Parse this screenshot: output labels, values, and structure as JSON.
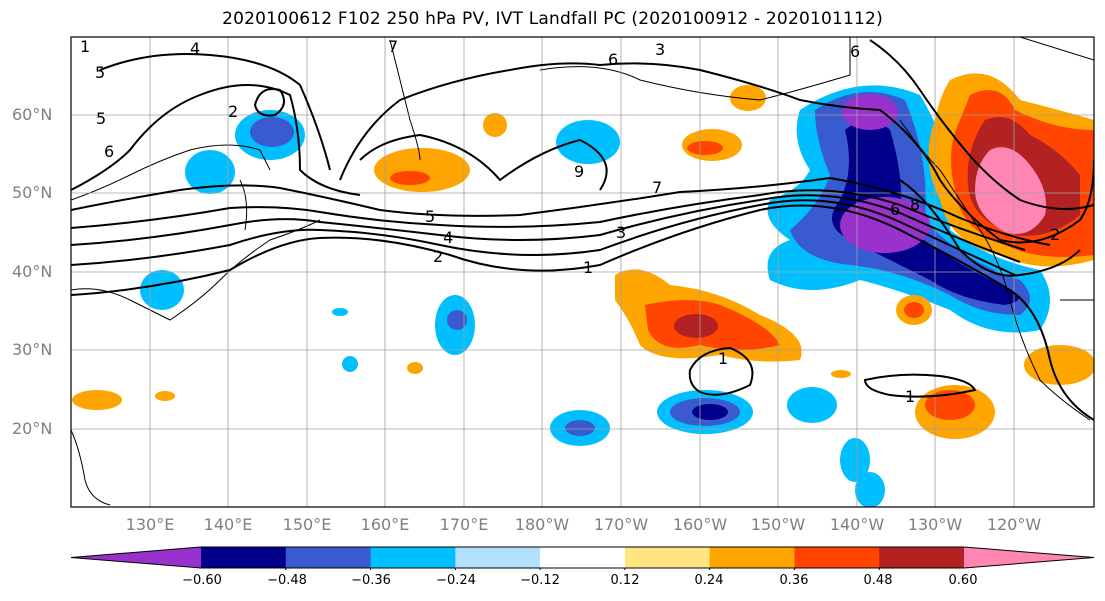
{
  "title": "2020100612 F102 250 hPa PV, IVT Landfall PC (2020100912 - 2020101112)",
  "latitude_labels": [
    "60°N",
    "50°N",
    "40°N",
    "30°N",
    "20°N"
  ],
  "longitude_labels": [
    "130°E",
    "140°E",
    "150°E",
    "160°E",
    "170°E",
    "180°W",
    "170°W",
    "160°W",
    "150°W",
    "140°W",
    "130°W",
    "120°W"
  ],
  "colorbar": {
    "ticks": [
      "−0.60",
      "−0.48",
      "−0.36",
      "−0.24",
      "−0.12",
      "0.12",
      "0.24",
      "0.36",
      "0.48",
      "0.60"
    ],
    "colors": [
      "#9932cc",
      "#00008b",
      "#3a5bd0",
      "#00bfff",
      "#b3e0ff",
      "#ffffff",
      "#ffe680",
      "#ffa500",
      "#ff4500",
      "#b22222",
      "#ff85b3"
    ]
  },
  "contour_labels": [
    "1",
    "2",
    "3",
    "4",
    "5",
    "6",
    "7",
    "5",
    "6",
    "2",
    "1",
    "4",
    "3",
    "5",
    "6",
    "9",
    "7",
    "6",
    "8",
    "2",
    "1",
    "1"
  ]
}
